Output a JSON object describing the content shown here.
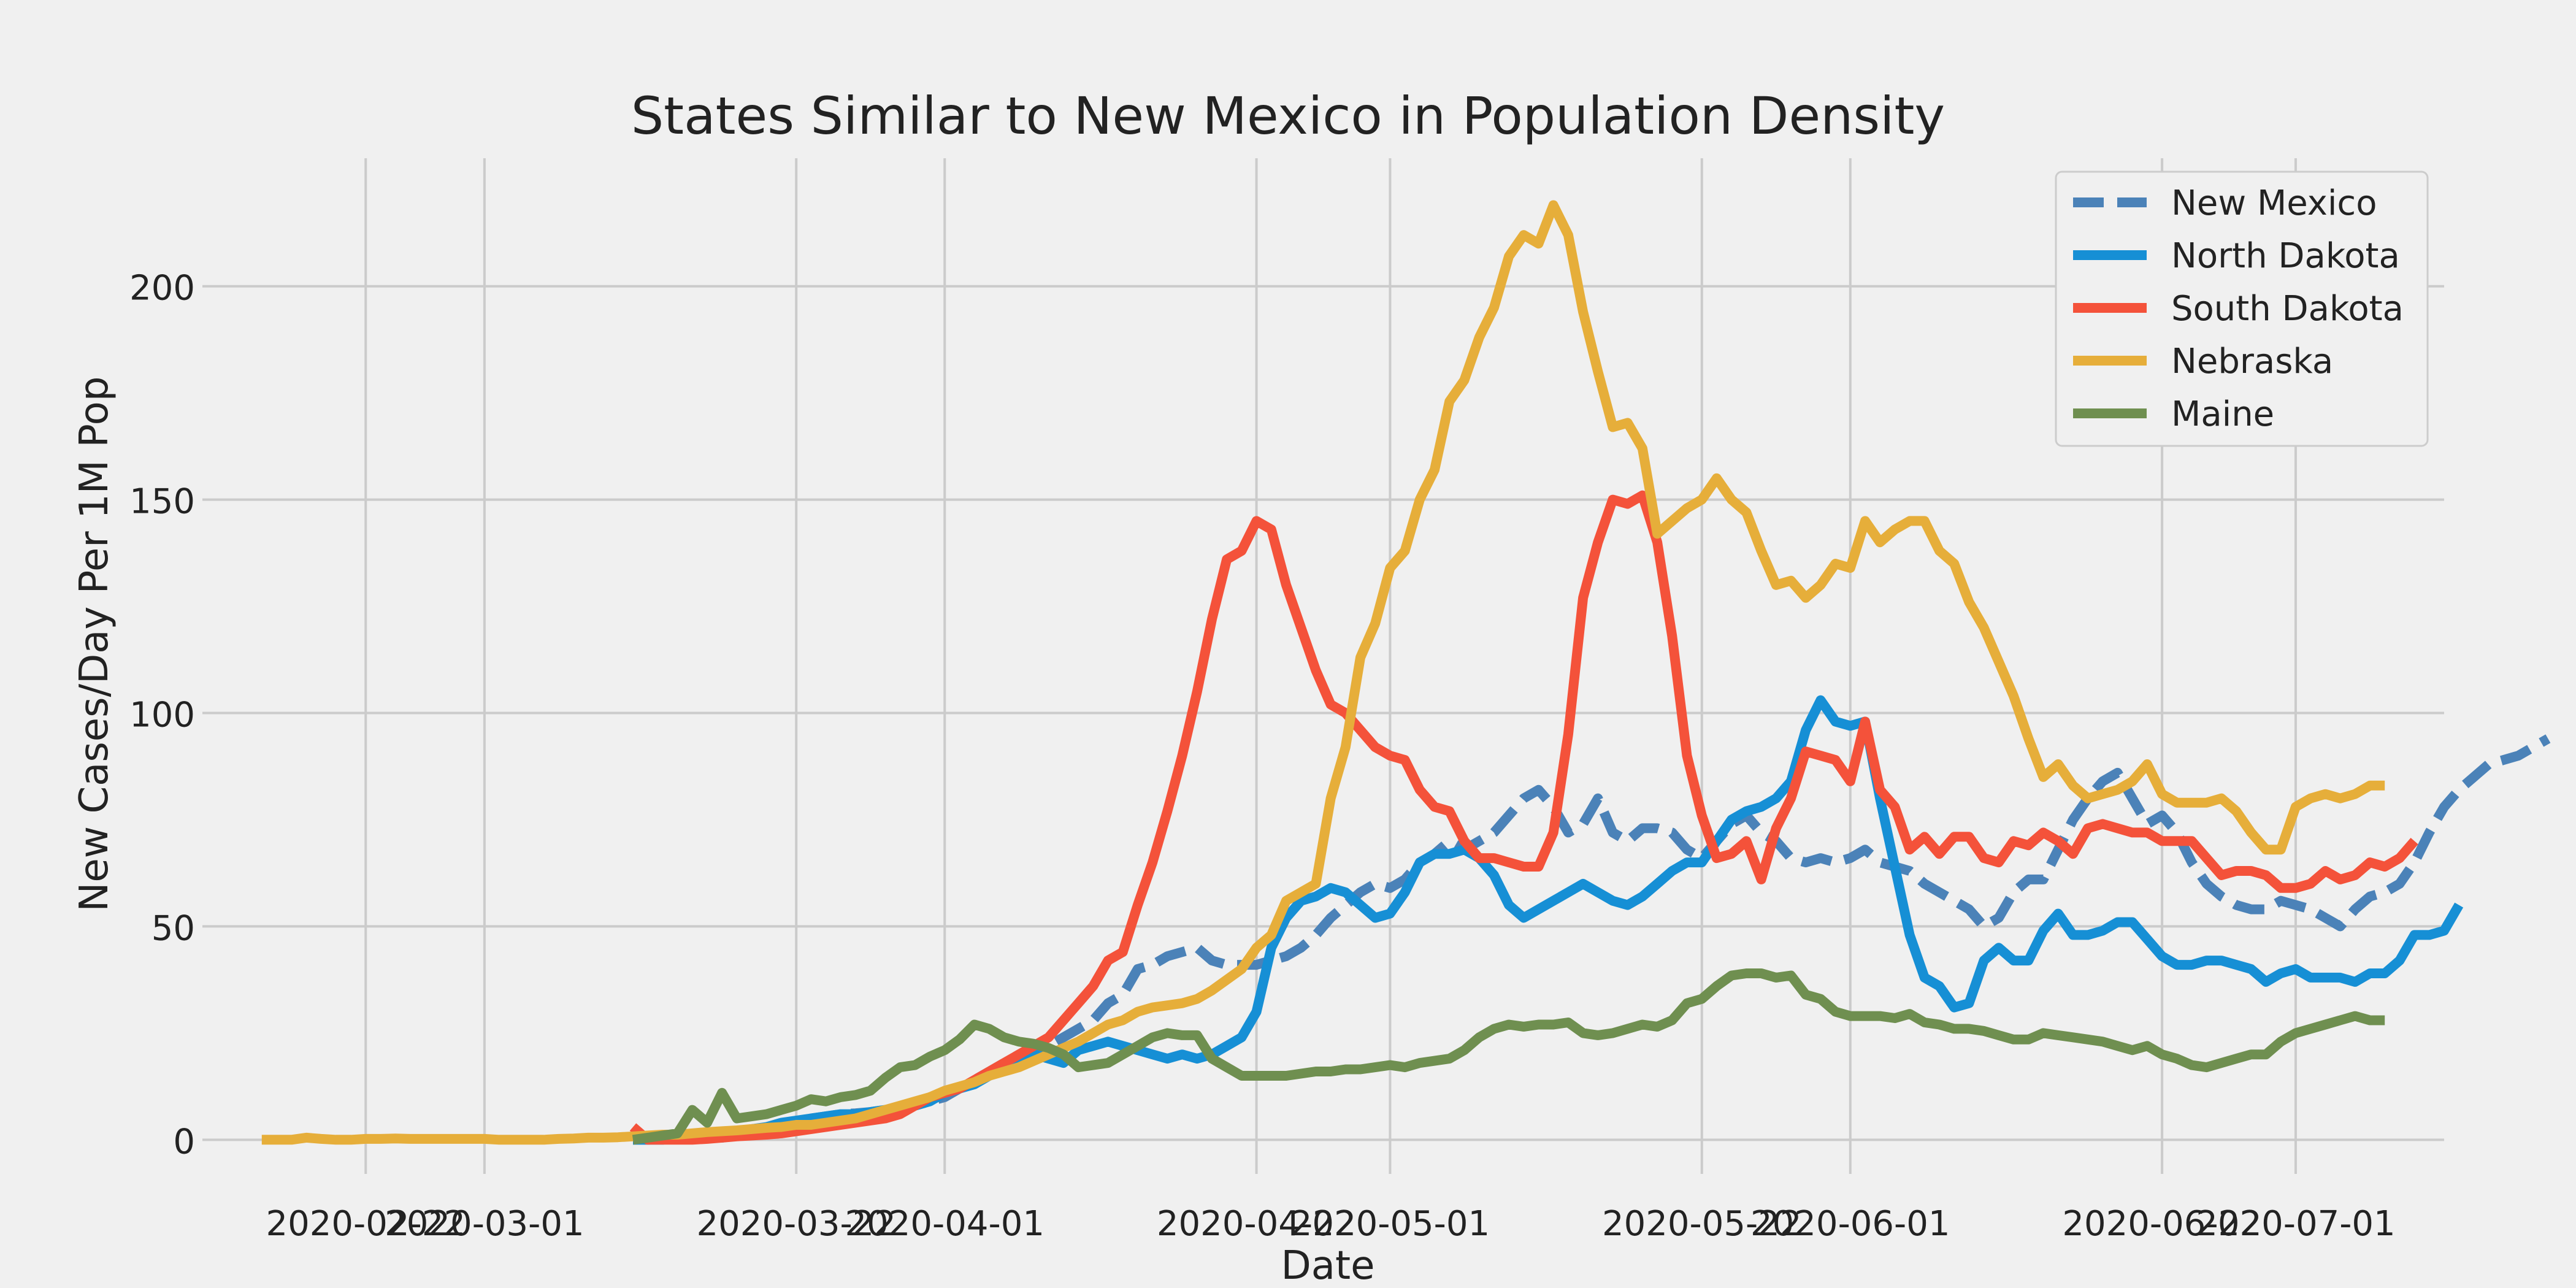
{
  "chart_data": {
    "type": "line",
    "title": "States Similar to New Mexico in Population Density",
    "xlabel": "Date",
    "ylabel": "New Cases/Day Per 1M Pop",
    "x_start": "2020-02-15",
    "x_step_days": 1,
    "xlim": [
      "2020-02-11",
      "2020-07-11"
    ],
    "ylim": [
      -8,
      230
    ],
    "x_ticks": [
      "2020-02-22",
      "2020-03-01",
      "2020-03-22",
      "2020-04-01",
      "2020-04-22",
      "2020-05-01",
      "2020-05-22",
      "2020-06-01",
      "2020-06-22",
      "2020-07-01"
    ],
    "y_ticks": [
      0,
      50,
      100,
      150,
      200
    ],
    "grid": true,
    "legend_position": "top-right",
    "series": [
      {
        "name": "New Mexico",
        "color": "#4b82b8",
        "dashed": true,
        "start": "2020-03-11",
        "values": [
          0,
          0,
          0.2,
          0.2,
          0.5,
          0.8,
          0.5,
          1,
          2,
          2.5,
          3,
          4,
          5,
          5.5,
          6,
          6.2,
          6.5,
          7,
          7.5,
          8,
          9,
          10,
          12,
          14,
          16,
          18,
          19,
          20,
          22,
          24,
          26,
          28,
          32,
          34,
          40,
          41,
          43,
          44,
          45,
          42,
          41,
          41,
          41,
          42,
          43,
          45,
          48,
          52,
          55,
          58,
          60,
          59,
          61,
          65,
          67,
          70,
          68,
          70,
          72,
          76,
          80,
          82,
          78,
          72,
          74,
          80,
          72,
          70,
          73,
          73,
          72,
          68,
          66,
          70,
          74,
          76,
          72,
          70,
          66,
          65,
          66,
          65,
          66,
          68,
          65,
          64,
          63,
          60,
          58,
          56,
          54,
          50,
          52,
          58,
          61,
          61,
          68,
          75,
          80,
          84,
          86,
          80,
          74,
          76,
          72,
          65,
          60,
          57,
          55,
          54,
          54,
          56,
          55,
          54,
          52,
          50,
          54,
          57,
          58,
          60,
          65,
          72,
          78,
          82,
          85,
          88,
          89,
          90,
          92,
          94
        ]
      },
      {
        "name": "North Dakota",
        "color": "#168fd5",
        "dashed": false,
        "start": "2020-03-11",
        "values": [
          0,
          0,
          0,
          0.5,
          0.5,
          1,
          1.5,
          2,
          2.5,
          3,
          4,
          4.5,
          5,
          5.5,
          6,
          6,
          6.5,
          7,
          7.5,
          8,
          9,
          11,
          12,
          13,
          15,
          17,
          19,
          20,
          19,
          18,
          21,
          22,
          23,
          22,
          21,
          20,
          19,
          20,
          19,
          20,
          22,
          24,
          30,
          45,
          52,
          56,
          57,
          59,
          58,
          55,
          52,
          53,
          58,
          65,
          67,
          67,
          68,
          66,
          62,
          55,
          52,
          54,
          56,
          58,
          60,
          58,
          56,
          55,
          57,
          60,
          63,
          65,
          65,
          70,
          75,
          77,
          78,
          80,
          84,
          96,
          103,
          98,
          97,
          98,
          80,
          64,
          48,
          38,
          36,
          31,
          32,
          42,
          45,
          42,
          42,
          49,
          53,
          48,
          48,
          49,
          51,
          51,
          47,
          43,
          41,
          41,
          42,
          42,
          41,
          40,
          37,
          39,
          40,
          38,
          38,
          38,
          37,
          39,
          39,
          42,
          48,
          48,
          49,
          55
        ]
      },
      {
        "name": "South Dakota",
        "color": "#f4523a",
        "dashed": false,
        "start": "2020-03-11",
        "values": [
          3,
          0,
          0,
          0,
          0,
          0.2,
          0.5,
          0.8,
          1,
          1.2,
          1.5,
          2,
          2.5,
          3,
          3.5,
          4,
          4.5,
          5,
          6,
          8,
          10,
          11,
          12,
          14,
          16,
          18,
          20,
          22,
          24,
          28,
          32,
          36,
          42,
          44,
          55,
          65,
          77,
          90,
          105,
          122,
          136,
          138,
          145,
          143,
          130,
          120,
          110,
          102,
          100,
          96,
          92,
          90,
          89,
          82,
          78,
          77,
          70,
          66,
          66,
          65,
          64,
          64,
          72,
          95,
          127,
          140,
          150,
          149,
          151,
          140,
          118,
          90,
          76,
          66,
          67,
          70,
          61,
          73,
          80,
          91,
          90,
          89,
          84,
          98,
          82,
          78,
          68,
          71,
          67,
          71,
          71,
          66,
          65,
          70,
          69,
          72,
          70,
          67,
          73,
          74,
          73,
          72,
          72,
          70,
          70,
          70,
          66,
          62,
          63,
          63,
          62,
          59,
          59,
          60,
          63,
          61,
          62,
          65,
          64,
          66,
          70
        ]
      },
      {
        "name": "Nebraska",
        "color": "#e6ae3a",
        "dashed": false,
        "start": "2020-02-15",
        "values": [
          0,
          0,
          0,
          0.5,
          0.2,
          0,
          0,
          0.2,
          0.2,
          0.3,
          0.2,
          0.2,
          0.2,
          0.2,
          0.2,
          0.2,
          0,
          0,
          0,
          0,
          0.2,
          0.3,
          0.5,
          0.5,
          0.6,
          0.8,
          1,
          1.2,
          1.2,
          1.5,
          1.8,
          2,
          2.2,
          2.5,
          2.8,
          3,
          3.5,
          3.5,
          4,
          4.5,
          5,
          6,
          7,
          8,
          9,
          10,
          11.5,
          12.5,
          13.5,
          15,
          16,
          17,
          18.5,
          20,
          21.5,
          23,
          25,
          27,
          28,
          30,
          31,
          31.5,
          32,
          33,
          35,
          37.5,
          40,
          45,
          48,
          56,
          58,
          60,
          80,
          92,
          113,
          121,
          134,
          138,
          150,
          157,
          173,
          178,
          188,
          195,
          207,
          212,
          210,
          219,
          212,
          194,
          180,
          167,
          168,
          162,
          142,
          145,
          148,
          150,
          155,
          150,
          147,
          138,
          130,
          131,
          127,
          130,
          135,
          134,
          145,
          140,
          143,
          145,
          145,
          138,
          135,
          126,
          120,
          112,
          104,
          94,
          85,
          88,
          83,
          80,
          81,
          82,
          84,
          88,
          81,
          79,
          79,
          79,
          80,
          77,
          72,
          68,
          68,
          78,
          80,
          81,
          80,
          81,
          83,
          83
        ]
      },
      {
        "name": "Maine",
        "color": "#6f8f50",
        "dashed": false,
        "start": "2020-03-11",
        "values": [
          0,
          0.5,
          1,
          1.5,
          7,
          4,
          11,
          5,
          5.5,
          6,
          7,
          8,
          9.5,
          9,
          10,
          10.5,
          11.5,
          14.5,
          17,
          17.5,
          19.5,
          21,
          23.5,
          27,
          26,
          24,
          23,
          22.5,
          21.5,
          20,
          17,
          17.5,
          18,
          20,
          22,
          24,
          25,
          24.5,
          24.5,
          19,
          17,
          15,
          15,
          15,
          15,
          15.5,
          16,
          16,
          16.5,
          16.5,
          17,
          17.5,
          17,
          18,
          18.5,
          19,
          21,
          24,
          26,
          27,
          26.5,
          27,
          27,
          27.5,
          25,
          24.5,
          25,
          26,
          27,
          26.5,
          28,
          32,
          33,
          36,
          38.5,
          39,
          39,
          38,
          38.5,
          34,
          33,
          30,
          29,
          29,
          29,
          28.5,
          29.5,
          27.5,
          27,
          26,
          26,
          25.5,
          24.5,
          23.5,
          23.5,
          25,
          24.5,
          24,
          23.5,
          23,
          22,
          21,
          22,
          20,
          19,
          17.5,
          17,
          18,
          19,
          20,
          20,
          23,
          25,
          26,
          27,
          28,
          29,
          28,
          28
        ]
      }
    ]
  }
}
